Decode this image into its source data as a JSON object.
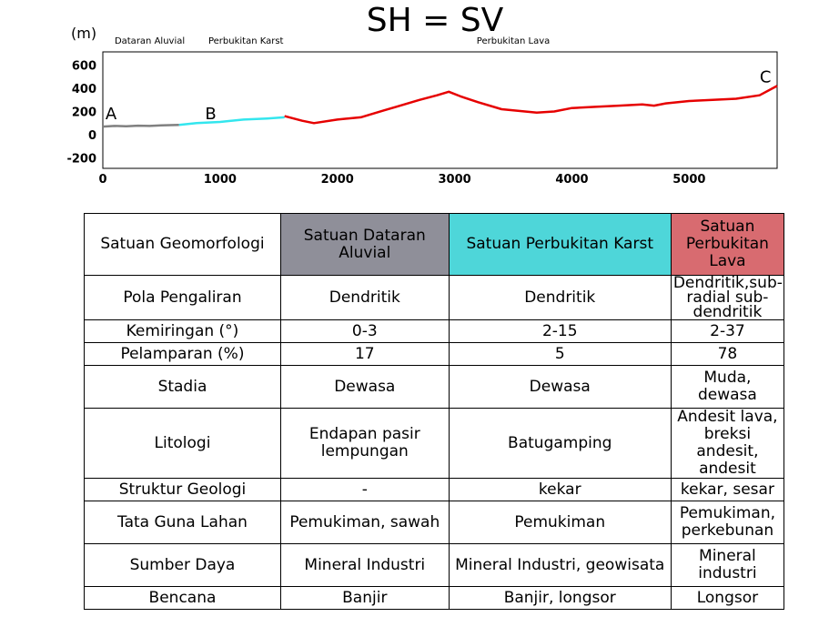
{
  "chart_data": {
    "type": "line",
    "title": "SH = SV",
    "ylabel": "(m)",
    "xlabel": "",
    "xlim": [
      0,
      5750
    ],
    "ylim": [
      -200,
      800
    ],
    "xticks": [
      "0",
      "1000",
      "2000",
      "3000",
      "4000",
      "5000"
    ],
    "yticks": [
      "600",
      "400",
      "200",
      "0",
      "-200"
    ],
    "ytick_values": [
      600,
      400,
      200,
      0,
      -200
    ],
    "xtick_values": [
      0,
      1000,
      2000,
      3000,
      4000,
      5000
    ],
    "grid": false,
    "region_labels": [
      {
        "text": "Dataran Aluvial",
        "x": 400
      },
      {
        "text": "Perbukitan Karst",
        "x": 1220
      },
      {
        "text": "Perbukitan Lava",
        "x": 3500
      }
    ],
    "point_labels": [
      {
        "text": "A",
        "x": 70,
        "y": 180
      },
      {
        "text": "B",
        "x": 920,
        "y": 180
      },
      {
        "text": "C",
        "x": 5650,
        "y": 500
      }
    ],
    "series": [
      {
        "color": "#808080",
        "x": [
          0,
          100,
          200,
          300,
          400,
          500,
          650
        ],
        "y": [
          70,
          75,
          72,
          78,
          75,
          80,
          85
        ]
      },
      {
        "color": "#33e6ee",
        "x": [
          650,
          800,
          1000,
          1200,
          1400,
          1550
        ],
        "y": [
          85,
          100,
          110,
          130,
          140,
          150
        ]
      },
      {
        "color": "#e60000",
        "x": [
          1550,
          1700,
          1800,
          2000,
          2200,
          2400,
          2500,
          2700,
          2850,
          2950,
          3050,
          3200,
          3400,
          3500,
          3600,
          3700,
          3850,
          4000,
          4200,
          4400,
          4600,
          4700,
          4800,
          5000,
          5200,
          5400,
          5600,
          5750
        ],
        "y": [
          160,
          120,
          100,
          130,
          150,
          210,
          240,
          300,
          340,
          370,
          330,
          280,
          220,
          210,
          200,
          190,
          200,
          230,
          240,
          250,
          260,
          250,
          270,
          290,
          300,
          310,
          340,
          420
        ]
      }
    ]
  },
  "table": {
    "headers": [
      "Satuan Geomorfologi",
      "Satuan Dataran Aluvial",
      "Satuan Perbukitan Karst",
      "Satuan Perbukitan Lava"
    ],
    "header_colors": [
      "#ffffff",
      "#8f8f99",
      "#4ed6d9",
      "#d86b70"
    ],
    "rows": [
      [
        "Pola Pengaliran",
        "Dendritik",
        "Dendritik",
        "Dendritik,sub-radial sub-dendritik"
      ],
      [
        "Kemiringan (°)",
        "0-3",
        "2-15",
        "2-37"
      ],
      [
        "Pelamparan (%)",
        "17",
        "5",
        "78"
      ],
      [
        "Stadia",
        "Dewasa",
        "Dewasa",
        "Muda, dewasa"
      ],
      [
        "Litologi",
        "Endapan pasir lempungan",
        "Batugamping",
        "Andesit lava, breksi andesit, andesit"
      ],
      [
        "Struktur Geologi",
        "-",
        "kekar",
        "kekar, sesar"
      ],
      [
        "Tata Guna Lahan",
        "Pemukiman, sawah",
        "Pemukiman",
        "Pemukiman, perkebunan"
      ],
      [
        "Sumber Daya",
        "Mineral Industri",
        "Mineral Industri, geowisata",
        "Mineral industri"
      ],
      [
        "Bencana",
        "Banjir",
        "Banjir, longsor",
        "Longsor"
      ]
    ]
  }
}
